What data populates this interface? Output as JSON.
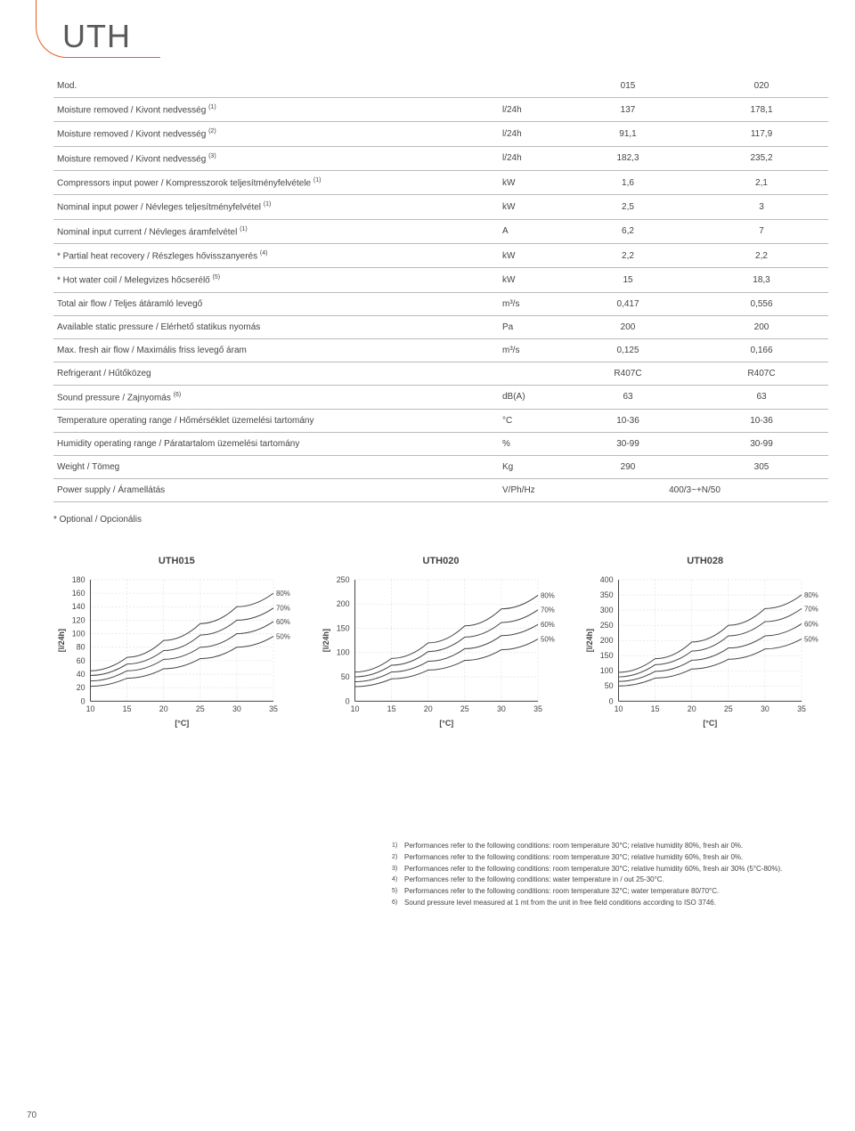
{
  "page": {
    "title": "UTH",
    "number": "70"
  },
  "table": {
    "header": {
      "mod": "Mod.",
      "col1": "015",
      "col2": "020"
    },
    "rows": [
      {
        "label": "Moisture removed / Kivont nedvesség",
        "sup": "(1)",
        "unit": "l/24h",
        "v1": "137",
        "v2": "178,1"
      },
      {
        "label": "Moisture removed / Kivont nedvesség",
        "sup": "(2)",
        "unit": "l/24h",
        "v1": "91,1",
        "v2": "117,9"
      },
      {
        "label": "Moisture removed / Kivont nedvesség",
        "sup": "(3)",
        "unit": "l/24h",
        "v1": "182,3",
        "v2": "235,2"
      },
      {
        "label": "Compressors input power / Kompresszorok teljesítményfelvétele",
        "sup": "(1)",
        "unit": "kW",
        "v1": "1,6",
        "v2": "2,1"
      },
      {
        "label": "Nominal input power / Névleges teljesítményfelvétel",
        "sup": "(1)",
        "unit": "kW",
        "v1": "2,5",
        "v2": "3"
      },
      {
        "label": "Nominal input current / Névleges áramfelvétel",
        "sup": "(1)",
        "unit": "A",
        "v1": "6,2",
        "v2": "7"
      },
      {
        "label": "* Partial heat recovery / Részleges hővisszanyerés",
        "sup": "(4)",
        "unit": "kW",
        "v1": "2,2",
        "v2": "2,2"
      },
      {
        "label": "* Hot water coil / Melegvizes hőcserélő",
        "sup": "(5)",
        "unit": "kW",
        "v1": "15",
        "v2": "18,3"
      },
      {
        "label": "Total air flow / Teljes átáramló levegő",
        "sup": "",
        "unit": "m³/s",
        "v1": "0,417",
        "v2": "0,556"
      },
      {
        "label": "Available static pressure / Elérhető statikus nyomás",
        "sup": "",
        "unit": "Pa",
        "v1": "200",
        "v2": "200"
      },
      {
        "label": "Max. fresh air flow / Maximális friss levegő áram",
        "sup": "",
        "unit": "m³/s",
        "v1": "0,125",
        "v2": "0,166"
      },
      {
        "label": "Refrigerant / Hűtőközeg",
        "sup": "",
        "unit": "",
        "v1": "R407C",
        "v2": "R407C"
      },
      {
        "label": "Sound pressure / Zajnyomás",
        "sup": "(6)",
        "unit": "dB(A)",
        "v1": "63",
        "v2": "63"
      },
      {
        "label": "Temperature operating range / Hőmérséklet üzemelési tartomány",
        "sup": "",
        "unit": "°C",
        "v1": "10-36",
        "v2": "10-36"
      },
      {
        "label": "Humidity operating range / Páratartalom üzemelési tartomány",
        "sup": "",
        "unit": "%",
        "v1": "30-99",
        "v2": "30-99"
      },
      {
        "label": "Weight / Tömeg",
        "sup": "",
        "unit": "Kg",
        "v1": "290",
        "v2": "305"
      },
      {
        "label": "Power supply / Áramellátás",
        "sup": "",
        "unit": "V/Ph/Hz",
        "v1": "400/3~+N/50",
        "v2": "",
        "span": true
      }
    ]
  },
  "optional": "* Optional / Opcionális",
  "charts": [
    {
      "title": "UTH015",
      "ylabel": "[l/24h]",
      "xlabel": "[°C]",
      "ymin": 0,
      "ymax": 180,
      "ystep": 20,
      "xmin": 10,
      "xmax": 35,
      "xstep": 5,
      "grid_color": "#dddddd",
      "axis_color": "#444444",
      "line_color": "#444444",
      "label_fontsize": 9,
      "series": [
        {
          "label": "80%",
          "pts": [
            [
              10,
              45
            ],
            [
              15,
              65
            ],
            [
              20,
              90
            ],
            [
              25,
              115
            ],
            [
              30,
              140
            ],
            [
              35,
              160
            ]
          ]
        },
        {
          "label": "70%",
          "pts": [
            [
              10,
              38
            ],
            [
              15,
              55
            ],
            [
              20,
              75
            ],
            [
              25,
              98
            ],
            [
              30,
              120
            ],
            [
              35,
              138
            ]
          ]
        },
        {
          "label": "60%",
          "pts": [
            [
              10,
              30
            ],
            [
              15,
              45
            ],
            [
              20,
              62
            ],
            [
              25,
              80
            ],
            [
              30,
              100
            ],
            [
              35,
              118
            ]
          ]
        },
        {
          "label": "50%",
          "pts": [
            [
              10,
              22
            ],
            [
              15,
              34
            ],
            [
              20,
              48
            ],
            [
              25,
              63
            ],
            [
              30,
              80
            ],
            [
              35,
              96
            ]
          ]
        }
      ]
    },
    {
      "title": "UTH020",
      "ylabel": "[l/24h]",
      "xlabel": "[°C]",
      "ymin": 0,
      "ymax": 250,
      "ystep": 50,
      "xmin": 10,
      "xmax": 35,
      "xstep": 5,
      "grid_color": "#dddddd",
      "axis_color": "#444444",
      "line_color": "#444444",
      "label_fontsize": 9,
      "series": [
        {
          "label": "80%",
          "pts": [
            [
              10,
              60
            ],
            [
              15,
              88
            ],
            [
              20,
              120
            ],
            [
              25,
              155
            ],
            [
              30,
              190
            ],
            [
              35,
              218
            ]
          ]
        },
        {
          "label": "70%",
          "pts": [
            [
              10,
              50
            ],
            [
              15,
              74
            ],
            [
              20,
              102
            ],
            [
              25,
              132
            ],
            [
              30,
              162
            ],
            [
              35,
              188
            ]
          ]
        },
        {
          "label": "60%",
          "pts": [
            [
              10,
              40
            ],
            [
              15,
              60
            ],
            [
              20,
              82
            ],
            [
              25,
              108
            ],
            [
              30,
              135
            ],
            [
              35,
              158
            ]
          ]
        },
        {
          "label": "50%",
          "pts": [
            [
              10,
              30
            ],
            [
              15,
              46
            ],
            [
              20,
              64
            ],
            [
              25,
              84
            ],
            [
              30,
              106
            ],
            [
              35,
              128
            ]
          ]
        }
      ]
    },
    {
      "title": "UTH028",
      "ylabel": "[l/24h]",
      "xlabel": "[°C]",
      "ymin": 0,
      "ymax": 400,
      "ystep": 50,
      "xmin": 10,
      "xmax": 35,
      "xstep": 5,
      "grid_color": "#dddddd",
      "axis_color": "#444444",
      "line_color": "#444444",
      "label_fontsize": 9,
      "series": [
        {
          "label": "80%",
          "pts": [
            [
              10,
              95
            ],
            [
              15,
              140
            ],
            [
              20,
              195
            ],
            [
              25,
              250
            ],
            [
              30,
              305
            ],
            [
              35,
              350
            ]
          ]
        },
        {
          "label": "70%",
          "pts": [
            [
              10,
              80
            ],
            [
              15,
              120
            ],
            [
              20,
              165
            ],
            [
              25,
              215
            ],
            [
              30,
              262
            ],
            [
              35,
              305
            ]
          ]
        },
        {
          "label": "60%",
          "pts": [
            [
              10,
              65
            ],
            [
              15,
              98
            ],
            [
              20,
              135
            ],
            [
              25,
              175
            ],
            [
              30,
              215
            ],
            [
              35,
              255
            ]
          ]
        },
        {
          "label": "50%",
          "pts": [
            [
              10,
              50
            ],
            [
              15,
              76
            ],
            [
              20,
              106
            ],
            [
              25,
              138
            ],
            [
              30,
              172
            ],
            [
              35,
              205
            ]
          ]
        }
      ]
    }
  ],
  "footnotes": [
    {
      "sup": "1)",
      "text": "Performances refer to the following conditions: room temperature 30°C; relative humidity 80%, fresh air 0%."
    },
    {
      "sup": "2)",
      "text": "Performances refer to the following conditions: room temperature 30°C; relative humidity 60%, fresh air 0%."
    },
    {
      "sup": "3)",
      "text": "Performances refer to the following conditions: room temperature 30°C; relative humidity 60%, fresh air 30% (5°C-80%)."
    },
    {
      "sup": "4)",
      "text": "Performances refer to the following conditions: water temperature in / out 25-30°C."
    },
    {
      "sup": "5)",
      "text": "Performances refer to the following conditions: room temperature 32°C; water temperature 80/70°C."
    },
    {
      "sup": "6)",
      "text": "Sound pressure level measured at 1 mt from the unit in free field conditions according to ISO 3746."
    }
  ]
}
